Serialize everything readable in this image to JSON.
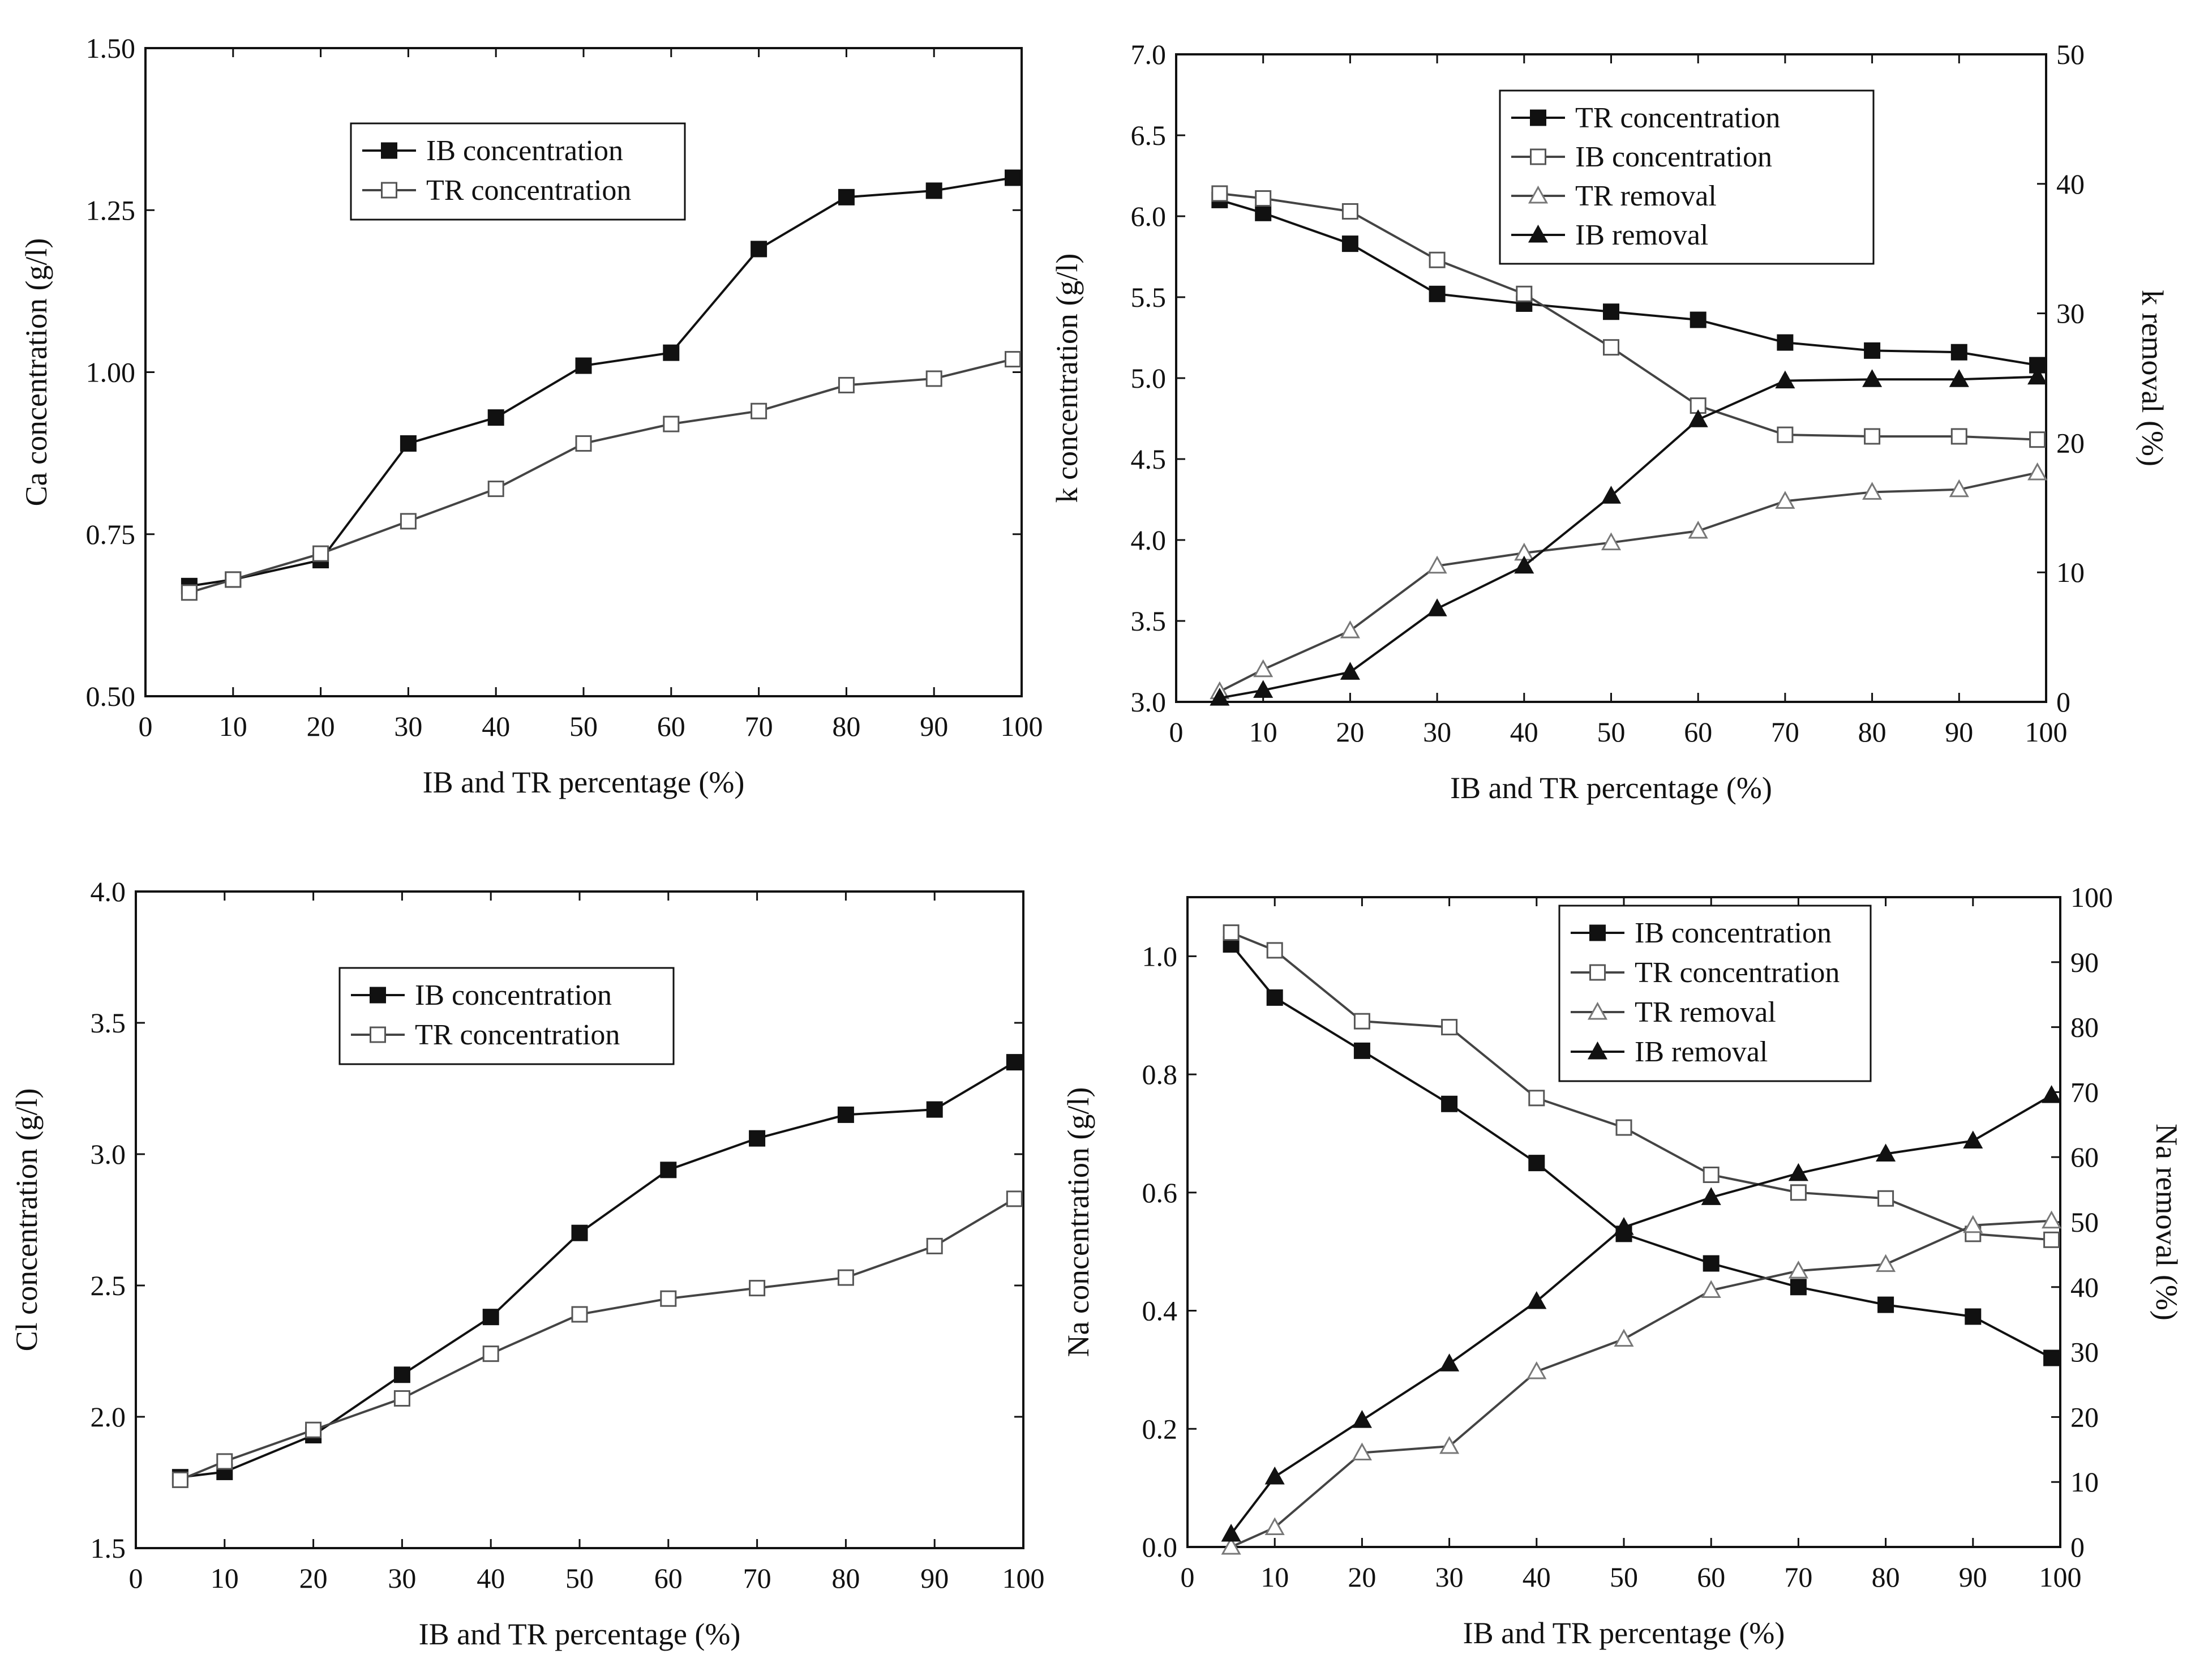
{
  "chart_data": [
    {
      "type": "line",
      "xlabel": "IB and TR percentage (%)",
      "ylabel": "Ca concentration (g/l)",
      "xlim": [
        0,
        100
      ],
      "ylim": [
        0.5,
        1.5
      ],
      "xticks": [
        "0",
        "10",
        "20",
        "30",
        "40",
        "50",
        "60",
        "70",
        "80",
        "90",
        "100"
      ],
      "yticks": [
        "0.50",
        "0.75",
        "1.00",
        "1.25",
        "1.50"
      ],
      "x": [
        5,
        10,
        20,
        30,
        40,
        50,
        60,
        70,
        80,
        90,
        99
      ],
      "legend_position": "upper-middle",
      "series": [
        {
          "name": "IB concentration",
          "marker": "filled-square",
          "axis": "left",
          "values": [
            0.67,
            0.68,
            0.71,
            0.89,
            0.93,
            1.01,
            1.03,
            1.19,
            1.27,
            1.28,
            1.3
          ]
        },
        {
          "name": "TR concentration",
          "marker": "open-square",
          "axis": "left",
          "values": [
            0.66,
            0.68,
            0.72,
            0.77,
            0.82,
            0.89,
            0.92,
            0.94,
            0.98,
            0.99,
            1.02
          ]
        }
      ]
    },
    {
      "type": "line",
      "xlabel": "IB and TR percentage (%)",
      "ylabel": "k concentration (g/l)",
      "y2label": "k removal (%)",
      "xlim": [
        0,
        100
      ],
      "ylim": [
        3.0,
        7.0
      ],
      "y2lim": [
        0,
        50
      ],
      "xticks": [
        "0",
        "10",
        "20",
        "30",
        "40",
        "50",
        "60",
        "70",
        "80",
        "90",
        "100"
      ],
      "yticks": [
        "3.0",
        "3.5",
        "4.0",
        "4.5",
        "5.0",
        "5.5",
        "6.0",
        "6.5",
        "7.0"
      ],
      "y2ticks": [
        "0",
        "10",
        "20",
        "30",
        "40",
        "50"
      ],
      "x": [
        5,
        10,
        20,
        30,
        40,
        50,
        60,
        70,
        80,
        90,
        99
      ],
      "legend_position": "top-right",
      "series": [
        {
          "name": "TR concentration",
          "marker": "filled-square",
          "axis": "left",
          "values": [
            6.1,
            6.02,
            5.83,
            5.52,
            5.46,
            5.41,
            5.36,
            5.22,
            5.17,
            5.16,
            5.08
          ]
        },
        {
          "name": "IB concentration",
          "marker": "open-square",
          "axis": "left",
          "values": [
            6.14,
            6.11,
            6.03,
            5.73,
            5.52,
            5.19,
            4.83,
            4.65,
            4.64,
            4.64,
            4.62
          ]
        },
        {
          "name": "TR removal",
          "marker": "open-triangle",
          "axis": "right",
          "values": [
            0.8,
            2.5,
            5.5,
            10.5,
            11.5,
            12.3,
            13.2,
            15.5,
            16.2,
            16.4,
            17.7
          ]
        },
        {
          "name": "IB removal",
          "marker": "filled-triangle",
          "axis": "right",
          "values": [
            0.3,
            0.9,
            2.3,
            7.2,
            10.5,
            15.9,
            21.8,
            24.8,
            24.9,
            24.9,
            25.1
          ]
        }
      ]
    },
    {
      "type": "line",
      "xlabel": "IB and TR percentage (%)",
      "ylabel": "Cl concentration (g/l)",
      "xlim": [
        0,
        100
      ],
      "ylim": [
        1.5,
        4.0
      ],
      "xticks": [
        "0",
        "10",
        "20",
        "30",
        "40",
        "50",
        "60",
        "70",
        "80",
        "90",
        "100"
      ],
      "yticks": [
        "1.5",
        "2.0",
        "2.5",
        "3.0",
        "3.5",
        "4.0"
      ],
      "x": [
        5,
        10,
        20,
        30,
        40,
        50,
        60,
        70,
        80,
        90,
        99
      ],
      "legend_position": "upper-middle",
      "series": [
        {
          "name": "IB concentration",
          "marker": "filled-square",
          "axis": "left",
          "values": [
            1.77,
            1.79,
            1.93,
            2.16,
            2.38,
            2.7,
            2.94,
            3.06,
            3.15,
            3.17,
            3.35
          ]
        },
        {
          "name": "TR concentration",
          "marker": "open-square",
          "axis": "left",
          "values": [
            1.76,
            1.83,
            1.95,
            2.07,
            2.24,
            2.39,
            2.45,
            2.49,
            2.53,
            2.65,
            2.83
          ]
        }
      ]
    },
    {
      "type": "line",
      "xlabel": "IB and TR percentage (%)",
      "ylabel": "Na concentration (g/l)",
      "y2label": "Na removal (%)",
      "xlim": [
        0,
        100
      ],
      "ylim": [
        0.0,
        1.1
      ],
      "y2lim": [
        0,
        100
      ],
      "xticks": [
        "0",
        "10",
        "20",
        "30",
        "40",
        "50",
        "60",
        "70",
        "80",
        "90",
        "100"
      ],
      "yticks": [
        "0.0",
        "0.2",
        "0.4",
        "0.6",
        "0.8",
        "1.0"
      ],
      "y2ticks": [
        "0",
        "10",
        "20",
        "30",
        "40",
        "50",
        "60",
        "70",
        "80",
        "90",
        "100"
      ],
      "x": [
        5,
        10,
        20,
        30,
        40,
        50,
        60,
        70,
        80,
        90,
        99
      ],
      "legend_position": "top-right",
      "series": [
        {
          "name": "IB concentration",
          "marker": "filled-square",
          "axis": "left",
          "values": [
            1.02,
            0.93,
            0.84,
            0.75,
            0.65,
            0.53,
            0.48,
            0.44,
            0.41,
            0.39,
            0.32
          ]
        },
        {
          "name": "TR concentration",
          "marker": "open-square",
          "axis": "left",
          "values": [
            1.04,
            1.01,
            0.89,
            0.88,
            0.76,
            0.71,
            0.63,
            0.6,
            0.59,
            0.53,
            0.52
          ]
        },
        {
          "name": "TR removal",
          "marker": "open-triangle",
          "axis": "right",
          "values": [
            0,
            3,
            14.5,
            15.5,
            27,
            32,
            39.5,
            42.5,
            43.5,
            49.5,
            50.2
          ]
        },
        {
          "name": "IB removal",
          "marker": "filled-triangle",
          "axis": "right",
          "values": [
            2,
            10.8,
            19.5,
            28.2,
            37.8,
            49.2,
            53.8,
            57.5,
            60.5,
            62.5,
            69.5
          ]
        }
      ]
    }
  ]
}
